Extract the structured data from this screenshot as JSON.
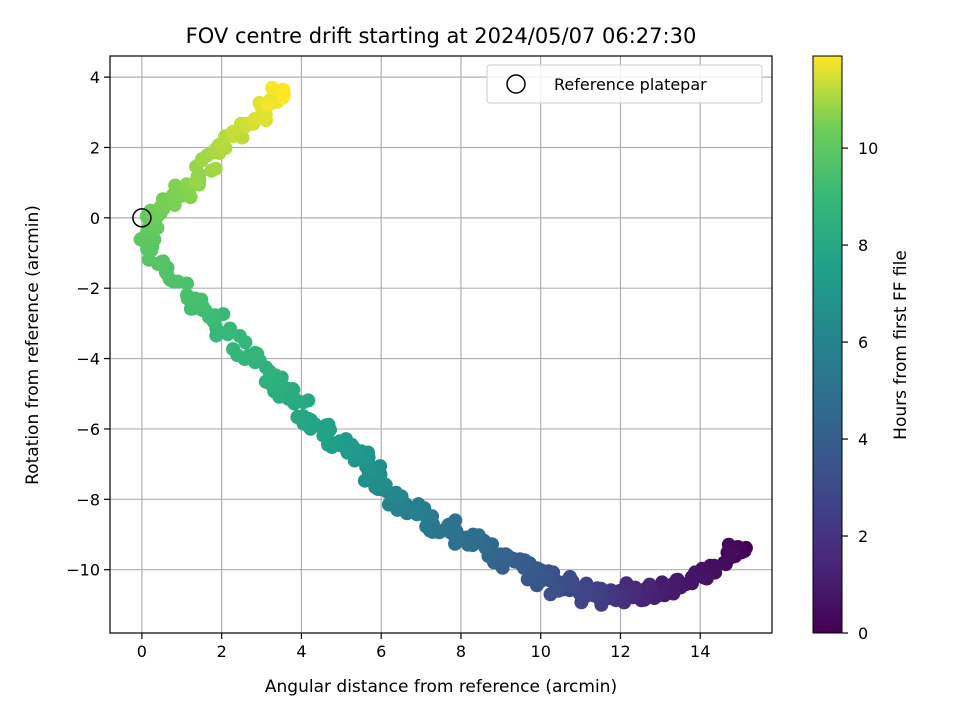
{
  "chart_data": {
    "type": "scatter",
    "title": "FOV centre drift starting at 2024/05/07 06:27:30",
    "xlabel": "Angular distance from reference (arcmin)",
    "ylabel": "Rotation from reference (arcmin)",
    "xlim": [
      -0.8,
      15.8
    ],
    "ylim": [
      -11.8,
      4.6
    ],
    "x_ticks": [
      0,
      2,
      4,
      6,
      8,
      10,
      12,
      14
    ],
    "y_ticks": [
      -10,
      -8,
      -6,
      -4,
      -2,
      0,
      2,
      4
    ],
    "x_tick_labels": [
      "0",
      "2",
      "4",
      "6",
      "8",
      "10",
      "12",
      "14"
    ],
    "y_tick_labels": [
      "−10",
      "−8",
      "−6",
      "−4",
      "−2",
      "0",
      "2",
      "4"
    ],
    "grid": true,
    "colormap": "viridis",
    "colorbar": {
      "label": "Hours from first FF file",
      "min": 0,
      "max": 11.9,
      "ticks": [
        0,
        2,
        4,
        6,
        8,
        10
      ],
      "tick_labels": [
        "0",
        "2",
        "4",
        "6",
        "8",
        "10"
      ]
    },
    "legend": {
      "placement": "top-right",
      "entries": [
        {
          "label": "Reference platepar",
          "marker": "open-circle"
        }
      ]
    },
    "reference_point": {
      "x": 0,
      "y": 0
    },
    "path_hours": [
      0,
      0.3,
      0.6,
      0.9,
      1.2,
      1.6,
      2.0,
      2.4,
      2.8,
      3.2,
      3.6,
      4.0,
      4.4,
      4.8,
      5.2,
      5.6,
      6.0,
      6.4,
      6.8,
      7.2,
      7.6,
      8.0,
      8.4,
      8.8,
      9.0,
      9.3,
      9.6,
      9.9,
      10.3,
      10.7,
      11.1,
      11.5,
      11.9
    ],
    "path_x": [
      15.05,
      14.8,
      14.1,
      13.3,
      12.8,
      12.3,
      11.8,
      11.4,
      11.0,
      10.4,
      9.9,
      9.3,
      8.7,
      8.1,
      7.5,
      6.9,
      6.4,
      6.0,
      5.7,
      5.2,
      4.6,
      4.0,
      3.3,
      2.7,
      2.0,
      1.4,
      0.8,
      0.1,
      0.3,
      1.2,
      2.0,
      2.9,
      3.6
    ],
    "path_y": [
      -9.4,
      -9.5,
      -10.2,
      -10.4,
      -10.7,
      -10.6,
      -10.75,
      -10.8,
      -10.5,
      -10.4,
      -10.1,
      -9.7,
      -9.4,
      -9.1,
      -8.8,
      -8.4,
      -8.1,
      -7.6,
      -7.0,
      -6.6,
      -6.1,
      -5.4,
      -4.6,
      -3.8,
      -3.1,
      -2.5,
      -1.7,
      -0.6,
      0.1,
      0.9,
      2.0,
      2.9,
      3.7
    ],
    "point_count": 450
  }
}
